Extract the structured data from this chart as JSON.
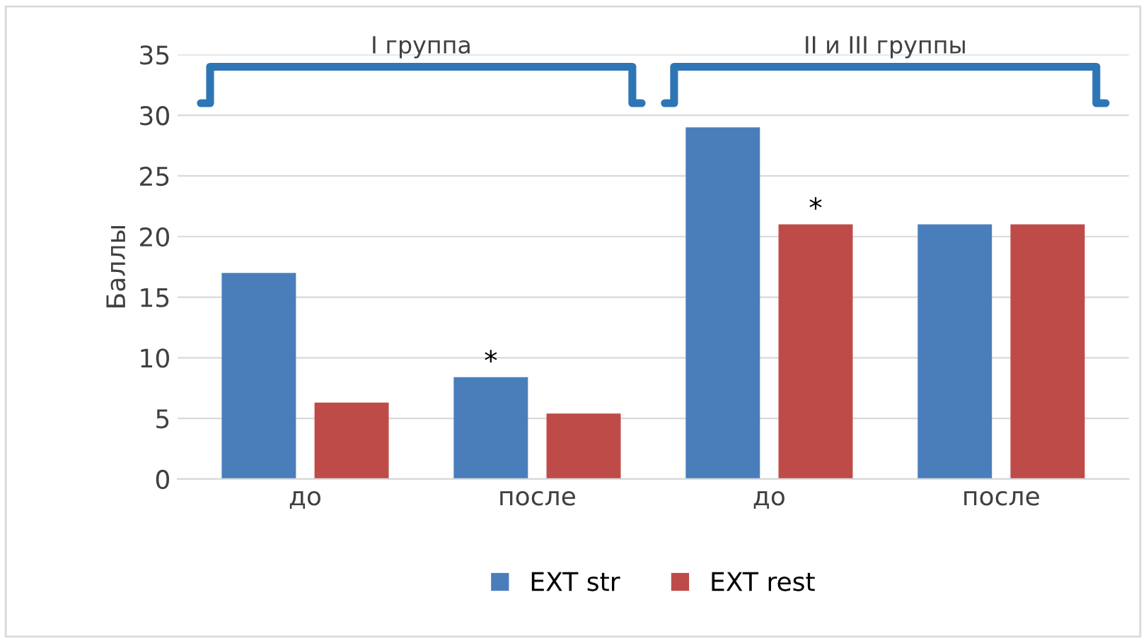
{
  "chart_data": {
    "type": "bar",
    "ylabel": "Баллы",
    "categories": [
      "до",
      "после",
      "до",
      "после"
    ],
    "series": [
      {
        "name": "EXT str",
        "color": "#4a7ebb",
        "values": [
          17,
          8.4,
          29,
          21
        ]
      },
      {
        "name": "EXT rest",
        "color": "#be4b48",
        "values": [
          6.3,
          5.4,
          21,
          21
        ]
      }
    ],
    "ylim": [
      0,
      35
    ],
    "yticks": [
      0,
      5,
      10,
      15,
      20,
      25,
      30,
      35
    ],
    "grid": "y",
    "legend": "bottom",
    "annotations": [
      "I группа",
      "II и III группы",
      "*",
      "*"
    ]
  }
}
